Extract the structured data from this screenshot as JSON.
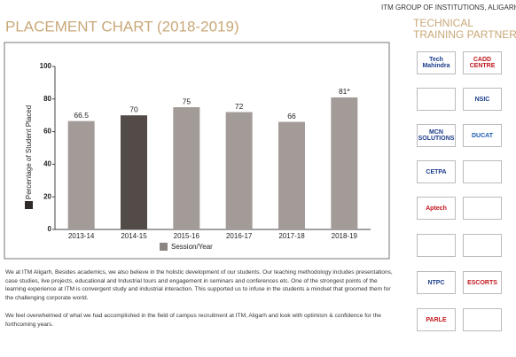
{
  "header": {
    "title": "PLACEMENT CHART (2018-2019)",
    "group": "ITM GROUP OF INSTITUTIONS, ALIGARH",
    "partners_title_1": "TECHNICAL",
    "partners_title_2": "TRAINING PARTNERS"
  },
  "chart_data": {
    "type": "bar",
    "categories": [
      "2013-14",
      "2014-15",
      "2015-16",
      "2016-17",
      "2017-18",
      "2018-19"
    ],
    "values": [
      66.5,
      70,
      75,
      72,
      66,
      81
    ],
    "value_labels": [
      "66.5",
      "70",
      "75",
      "72",
      "66",
      "81*"
    ],
    "colors": [
      "#a39b98",
      "#524b48",
      "#a39b98",
      "#a39b98",
      "#a39b98",
      "#a39b98"
    ],
    "ylim": [
      0,
      100
    ],
    "yticks": [
      0,
      20,
      40,
      60,
      80,
      100
    ],
    "legend": [
      {
        "name": "Percentage of Student Placed",
        "color": "#2f2a28"
      },
      {
        "name": "Session/Year",
        "color": "#8c8583"
      }
    ]
  },
  "body": {
    "paragraph_1": "We at ITM Aligarh, Besides academics, we also believe in the holistic development of our students. Our teaching methodology includes presentations, case studies, live projects, educational and Industrial tours and engagement in seminars and conferences etc. One of the strongest points of the learning experience at ITM is convergent study and industrial interaction. This supported us to infuse in the students a mindset that groomed them for the challenging corporate world.",
    "paragraph_2": "We feel overwhelmed of what we had accomplished in the field of campus recruitment at ITM, Aligarh and look with optimism & confidence for the forthcoming years."
  },
  "partners": {
    "logos": [
      "Tech Mahindra",
      "CADD CENTRE",
      "NSIC",
      "MCN SOLUTIONS",
      "DUCAT",
      "CETPA",
      "Aptech",
      "NTPC",
      "ESCORTS",
      "PARLE"
    ]
  }
}
